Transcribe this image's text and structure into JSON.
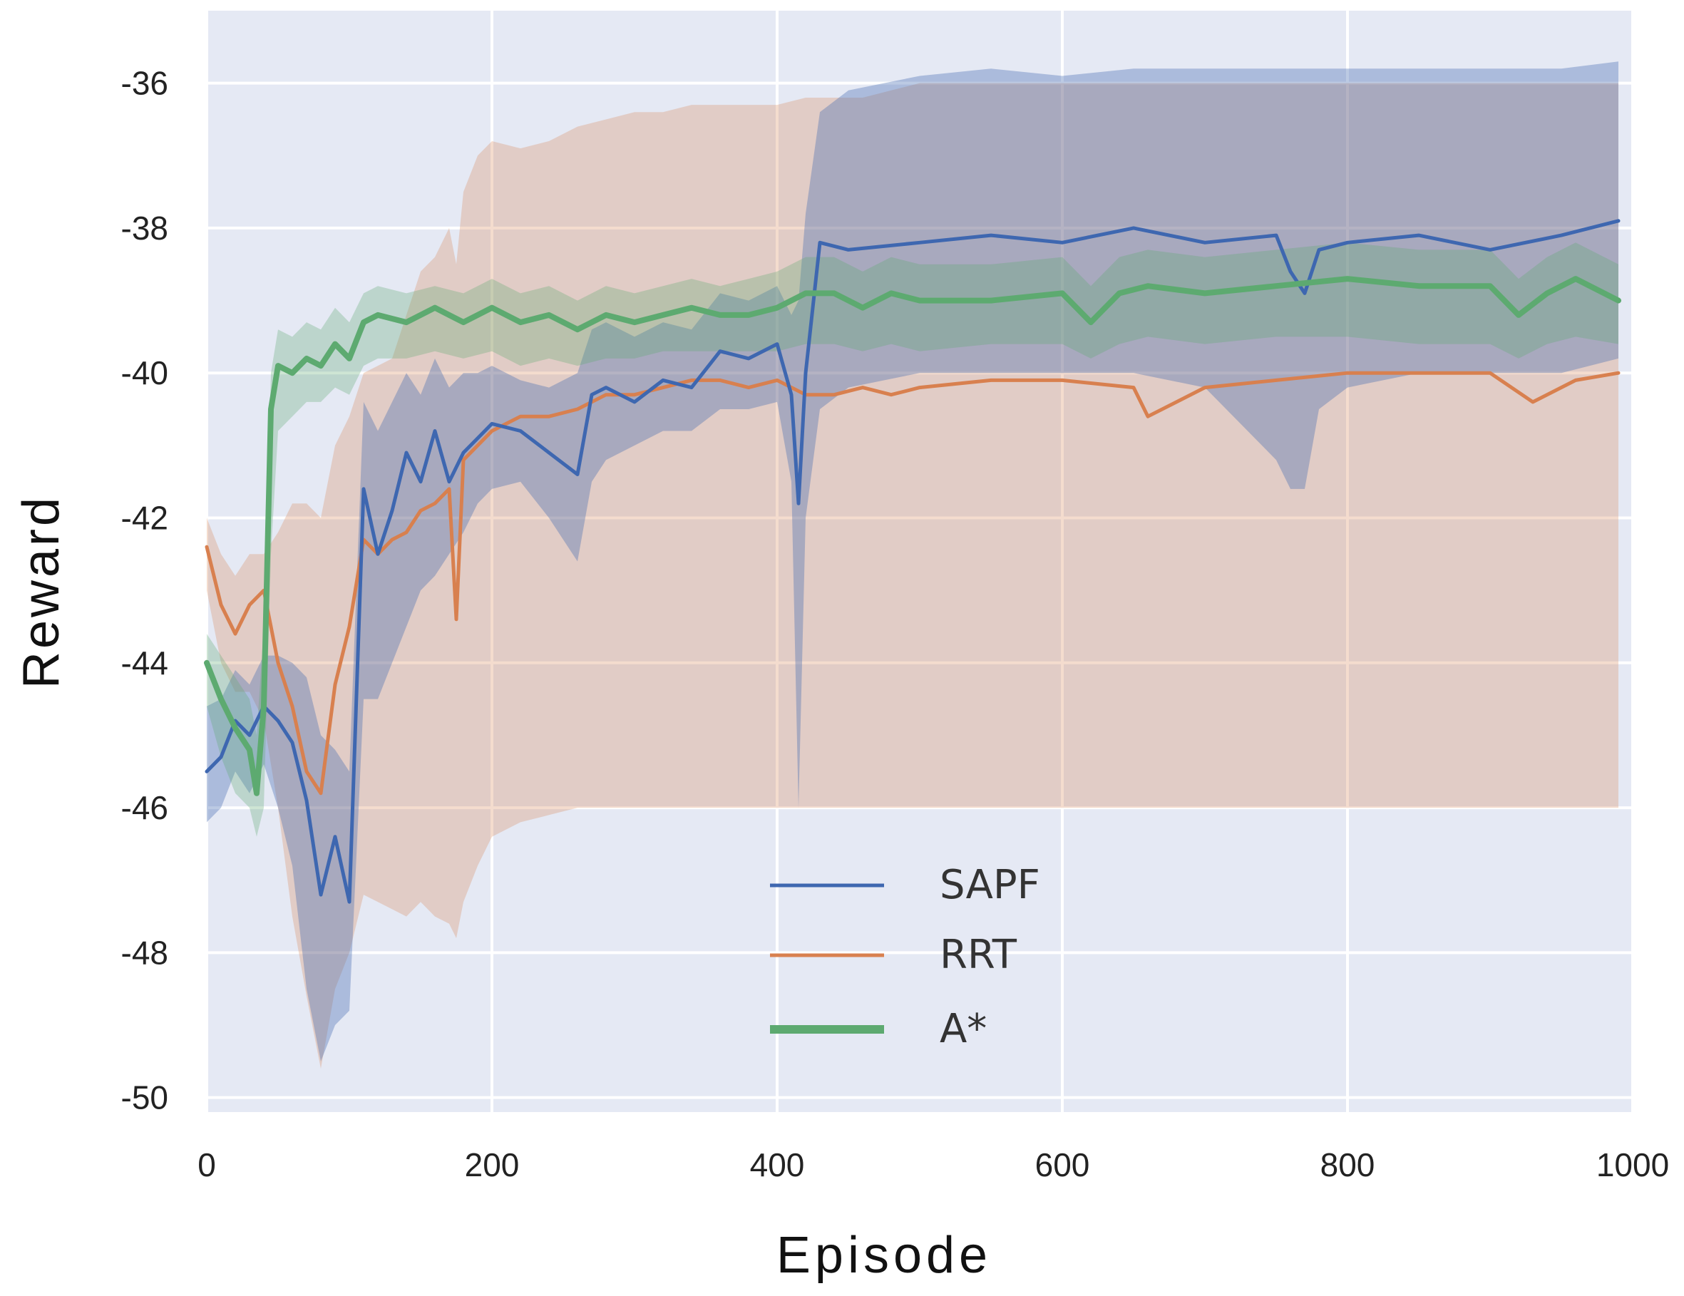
{
  "chart_data": {
    "type": "line",
    "title": "",
    "xlabel": "Episode",
    "ylabel": "Reward",
    "xlim": [
      0,
      1000
    ],
    "ylim": [
      -50.2,
      -35.0
    ],
    "xticks": [
      0,
      200,
      400,
      600,
      800,
      1000
    ],
    "yticks": [
      -50,
      -48,
      -46,
      -44,
      -42,
      -40,
      -38,
      -36
    ],
    "xtick_labels": [
      "0",
      "200",
      "400",
      "600",
      "800",
      "1000"
    ],
    "ytick_labels": [
      "-50",
      "-48",
      "-46",
      "-44",
      "-42",
      "-40",
      "-38",
      "-36"
    ],
    "grid": true,
    "background": "#e5e9f4",
    "legend_position": "lower-center",
    "series": [
      {
        "name": "SAPF",
        "color": "#3e67b0",
        "x": [
          0,
          10,
          20,
          30,
          40,
          50,
          60,
          70,
          80,
          90,
          100,
          110,
          120,
          130,
          140,
          150,
          160,
          170,
          180,
          190,
          200,
          220,
          240,
          260,
          270,
          280,
          300,
          320,
          340,
          360,
          380,
          400,
          410,
          415,
          420,
          430,
          450,
          500,
          550,
          600,
          650,
          700,
          750,
          760,
          770,
          780,
          800,
          850,
          900,
          950,
          990
        ],
        "y": [
          -45.5,
          -45.3,
          -44.8,
          -45.0,
          -44.6,
          -44.8,
          -45.1,
          -45.9,
          -47.2,
          -46.4,
          -47.3,
          -41.6,
          -42.5,
          -41.9,
          -41.1,
          -41.5,
          -40.8,
          -41.5,
          -41.1,
          -40.9,
          -40.7,
          -40.8,
          -41.1,
          -41.4,
          -40.3,
          -40.2,
          -40.4,
          -40.1,
          -40.2,
          -39.7,
          -39.8,
          -39.6,
          -40.3,
          -41.8,
          -40.0,
          -38.2,
          -38.3,
          -38.2,
          -38.1,
          -38.2,
          -38.0,
          -38.2,
          -38.1,
          -38.6,
          -38.9,
          -38.3,
          -38.2,
          -38.1,
          -38.3,
          -38.1,
          -37.9
        ],
        "band_low": [
          -46.2,
          -46.0,
          -45.5,
          -45.8,
          -45.4,
          -46.0,
          -46.8,
          -48.5,
          -49.5,
          -49.0,
          -48.8,
          -44.5,
          -44.5,
          -44.0,
          -43.5,
          -43.0,
          -42.8,
          -42.5,
          -42.2,
          -41.8,
          -41.6,
          -41.5,
          -42.0,
          -42.6,
          -41.5,
          -41.2,
          -41.0,
          -40.8,
          -40.8,
          -40.5,
          -40.5,
          -40.4,
          -41.5,
          -46.0,
          -42.0,
          -40.5,
          -40.2,
          -40.0,
          -40.0,
          -40.0,
          -40.0,
          -40.2,
          -41.2,
          -41.6,
          -41.6,
          -40.5,
          -40.2,
          -40.0,
          -40.0,
          -40.0,
          -39.8
        ],
        "band_high": [
          -44.6,
          -44.5,
          -44.1,
          -44.3,
          -43.9,
          -43.9,
          -44.0,
          -44.2,
          -45.0,
          -45.2,
          -45.5,
          -40.4,
          -40.8,
          -40.4,
          -40.0,
          -40.3,
          -39.8,
          -40.2,
          -40.0,
          -40.0,
          -39.9,
          -40.1,
          -40.2,
          -40.0,
          -39.4,
          -39.3,
          -39.5,
          -39.3,
          -39.4,
          -38.9,
          -39.0,
          -38.8,
          -39.2,
          -39.0,
          -37.8,
          -36.4,
          -36.1,
          -35.9,
          -35.8,
          -35.9,
          -35.8,
          -35.8,
          -35.8,
          -35.8,
          -35.8,
          -35.8,
          -35.8,
          -35.8,
          -35.8,
          -35.8,
          -35.7
        ]
      },
      {
        "name": "RRT",
        "color": "#d8804f",
        "x": [
          0,
          10,
          20,
          30,
          40,
          50,
          60,
          70,
          80,
          90,
          100,
          110,
          120,
          130,
          140,
          150,
          160,
          170,
          175,
          180,
          190,
          200,
          220,
          240,
          260,
          280,
          300,
          320,
          340,
          360,
          380,
          400,
          420,
          440,
          460,
          480,
          500,
          550,
          600,
          650,
          660,
          700,
          750,
          800,
          850,
          900,
          930,
          960,
          990
        ],
        "y": [
          -42.4,
          -43.2,
          -43.6,
          -43.2,
          -43.0,
          -44.0,
          -44.6,
          -45.5,
          -45.8,
          -44.3,
          -43.5,
          -42.3,
          -42.5,
          -42.3,
          -42.2,
          -41.9,
          -41.8,
          -41.6,
          -43.4,
          -41.2,
          -41.0,
          -40.8,
          -40.6,
          -40.6,
          -40.5,
          -40.3,
          -40.3,
          -40.2,
          -40.1,
          -40.1,
          -40.2,
          -40.1,
          -40.3,
          -40.3,
          -40.2,
          -40.3,
          -40.2,
          -40.1,
          -40.1,
          -40.2,
          -40.6,
          -40.2,
          -40.1,
          -40.0,
          -40.0,
          -40.0,
          -40.4,
          -40.1,
          -40.0
        ],
        "band_low": [
          -43.0,
          -44.0,
          -44.4,
          -44.4,
          -44.8,
          -46.0,
          -47.5,
          -48.6,
          -49.6,
          -48.5,
          -48.0,
          -47.2,
          -47.3,
          -47.4,
          -47.5,
          -47.3,
          -47.5,
          -47.6,
          -47.8,
          -47.3,
          -46.8,
          -46.4,
          -46.2,
          -46.1,
          -46.0,
          -46.0,
          -46.0,
          -46.0,
          -46.0,
          -46.0,
          -46.0,
          -46.0,
          -46.0,
          -46.0,
          -46.0,
          -46.0,
          -46.0,
          -46.0,
          -46.0,
          -46.0,
          -46.0,
          -46.0,
          -46.0,
          -46.0,
          -46.0,
          -46.0,
          -46.0,
          -46.0,
          -46.0
        ],
        "band_high": [
          -42.0,
          -42.5,
          -42.8,
          -42.5,
          -42.5,
          -42.2,
          -41.8,
          -41.8,
          -42.0,
          -41.0,
          -40.6,
          -40.0,
          -39.9,
          -39.8,
          -39.2,
          -38.6,
          -38.4,
          -38.0,
          -38.5,
          -37.5,
          -37.0,
          -36.8,
          -36.9,
          -36.8,
          -36.6,
          -36.5,
          -36.4,
          -36.4,
          -36.3,
          -36.3,
          -36.3,
          -36.3,
          -36.2,
          -36.2,
          -36.2,
          -36.1,
          -36.0,
          -36.0,
          -36.0,
          -36.0,
          -36.0,
          -36.0,
          -36.0,
          -36.0,
          -36.0,
          -36.0,
          -36.0,
          -36.0,
          -36.0
        ]
      },
      {
        "name": "A*",
        "color": "#5daa70",
        "x": [
          0,
          10,
          20,
          30,
          35,
          40,
          45,
          50,
          60,
          70,
          80,
          90,
          100,
          110,
          120,
          140,
          160,
          180,
          200,
          220,
          240,
          260,
          280,
          300,
          320,
          340,
          360,
          380,
          400,
          420,
          440,
          460,
          480,
          500,
          550,
          600,
          620,
          640,
          660,
          700,
          750,
          800,
          850,
          900,
          920,
          940,
          960,
          990
        ],
        "y": [
          -44.0,
          -44.5,
          -44.9,
          -45.2,
          -45.8,
          -44.6,
          -40.5,
          -39.9,
          -40.0,
          -39.8,
          -39.9,
          -39.6,
          -39.8,
          -39.3,
          -39.2,
          -39.3,
          -39.1,
          -39.3,
          -39.1,
          -39.3,
          -39.2,
          -39.4,
          -39.2,
          -39.3,
          -39.2,
          -39.1,
          -39.2,
          -39.2,
          -39.1,
          -38.9,
          -38.9,
          -39.1,
          -38.9,
          -39.0,
          -39.0,
          -38.9,
          -39.3,
          -38.9,
          -38.8,
          -38.9,
          -38.8,
          -38.7,
          -38.8,
          -38.8,
          -39.2,
          -38.9,
          -38.7,
          -39.0
        ],
        "band_low": [
          -44.6,
          -45.3,
          -45.8,
          -46.0,
          -46.4,
          -46.0,
          -42.5,
          -40.8,
          -40.6,
          -40.4,
          -40.4,
          -40.2,
          -40.3,
          -39.9,
          -39.8,
          -39.8,
          -39.7,
          -39.8,
          -39.7,
          -39.9,
          -39.8,
          -39.9,
          -39.8,
          -39.8,
          -39.7,
          -39.7,
          -39.7,
          -39.7,
          -39.7,
          -39.6,
          -39.6,
          -39.7,
          -39.6,
          -39.7,
          -39.6,
          -39.6,
          -39.8,
          -39.6,
          -39.5,
          -39.6,
          -39.5,
          -39.5,
          -39.6,
          -39.6,
          -39.8,
          -39.6,
          -39.5,
          -39.6
        ],
        "band_high": [
          -43.6,
          -43.9,
          -44.2,
          -44.5,
          -45.0,
          -43.5,
          -40.0,
          -39.4,
          -39.5,
          -39.3,
          -39.4,
          -39.1,
          -39.3,
          -38.9,
          -38.8,
          -38.9,
          -38.8,
          -38.9,
          -38.7,
          -38.9,
          -38.8,
          -39.0,
          -38.8,
          -38.9,
          -38.8,
          -38.7,
          -38.8,
          -38.7,
          -38.6,
          -38.4,
          -38.4,
          -38.6,
          -38.4,
          -38.5,
          -38.5,
          -38.4,
          -38.8,
          -38.4,
          -38.3,
          -38.4,
          -38.3,
          -38.2,
          -38.3,
          -38.3,
          -38.7,
          -38.4,
          -38.2,
          -38.5
        ]
      }
    ]
  }
}
